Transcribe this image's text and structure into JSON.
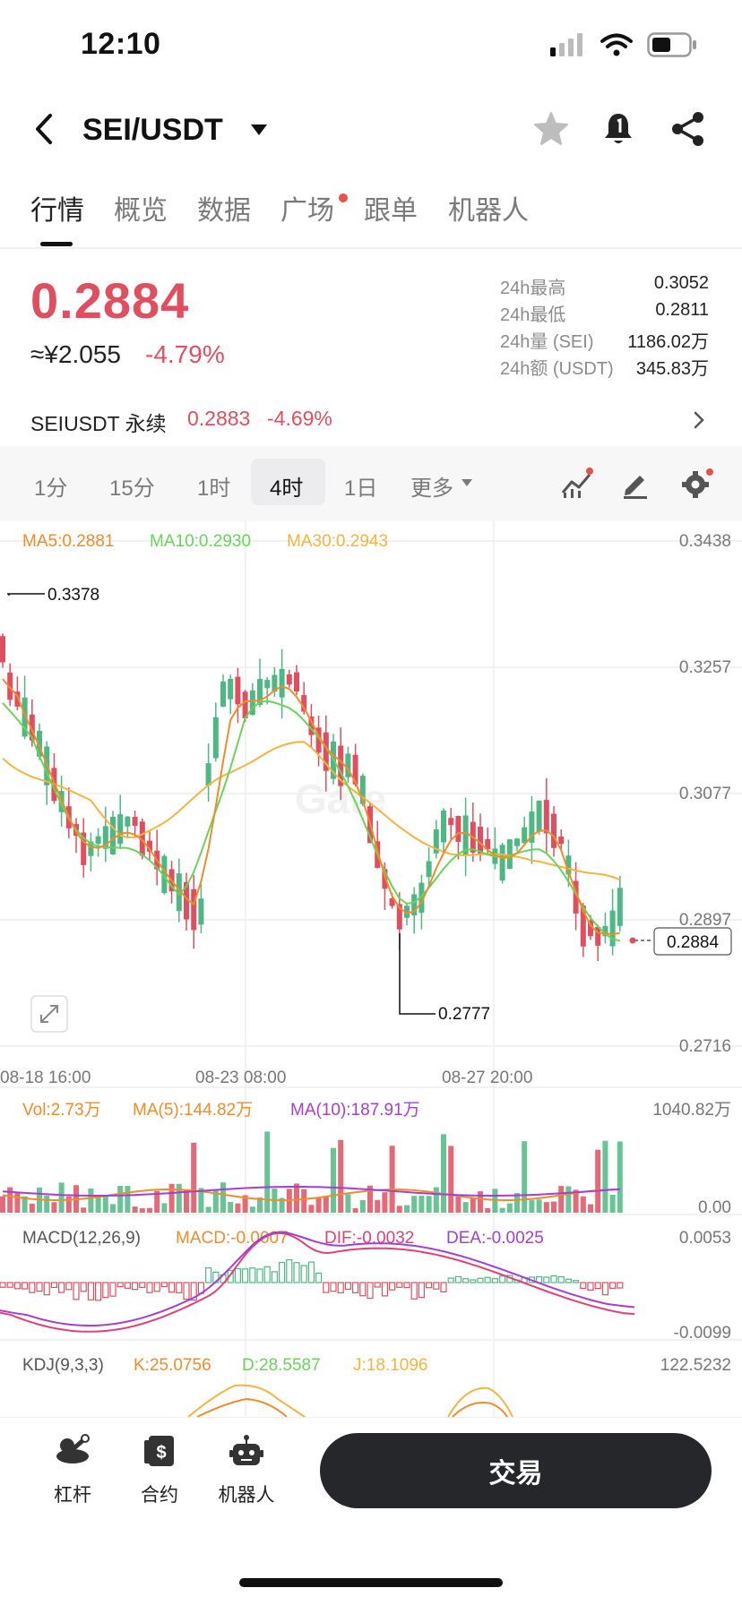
{
  "status_bar": {
    "time": "12:10"
  },
  "header": {
    "pair": "SEI/USDT"
  },
  "tabs": [
    {
      "label": "行情",
      "active": true
    },
    {
      "label": "概览"
    },
    {
      "label": "数据"
    },
    {
      "label": "广场",
      "has_dot": true
    },
    {
      "label": "跟单"
    },
    {
      "label": "机器人"
    }
  ],
  "ticker": {
    "last_price": "0.2884",
    "cny_value": "≈¥2.055",
    "change_pct": "-4.79%",
    "stats": [
      {
        "label": "24h最高",
        "value": "0.3052"
      },
      {
        "label": "24h最低",
        "value": "0.2811"
      },
      {
        "label": "24h量 (SEI)",
        "value": "1186.02万"
      },
      {
        "label": "24h额 (USDT)",
        "value": "345.83万"
      }
    ]
  },
  "perpetual": {
    "label": "SEIUSDT 永续",
    "price": "0.2883",
    "change_pct": "-4.69%"
  },
  "intervals": {
    "items": [
      "1分",
      "15分",
      "1时",
      "4时",
      "1日",
      "更多"
    ],
    "selected": "4时"
  },
  "colors": {
    "up": "#4db883",
    "down": "#e04f5f",
    "ma5": "#ef8c2b",
    "ma10": "#69d35a",
    "ma30": "#f3b53f",
    "macd_dif": "#e0407a",
    "macd_dea": "#a43fd1"
  },
  "chart": {
    "ma_legend": {
      "ma5": "MA5:0.2881",
      "ma10": "MA10:0.2930",
      "ma30": "MA30:0.2943"
    },
    "y_ticks": [
      "0.3438",
      "0.3257",
      "0.3077",
      "0.2897",
      "0.2716"
    ],
    "x_ticks": [
      "08-18 16:00",
      "08-23 08:00",
      "08-27 20:00"
    ],
    "high_marker": "0.3378",
    "low_marker": "0.2777",
    "current_price_tag": "0.2884",
    "watermark": "Gate"
  },
  "volume": {
    "vol": "Vol:2.73万",
    "ma5": "MA(5):144.82万",
    "ma10": "MA(10):187.91万",
    "max": "1040.82万",
    "min": "0.00"
  },
  "macd": {
    "label": "MACD(12,26,9)",
    "macd": "MACD:-0.0007",
    "dif": "DIF:-0.0032",
    "dea": "DEA:-0.0025",
    "max": "0.0053",
    "min": "-0.0099"
  },
  "kdj": {
    "label": "KDJ(9,3,3)",
    "k": "K:25.0756",
    "d": "D:28.5587",
    "j": "J:18.1096",
    "max": "122.5232"
  },
  "bottom_nav": [
    {
      "label": "杠杆",
      "icon": "leverage-icon"
    },
    {
      "label": "合约",
      "icon": "contract-icon"
    },
    {
      "label": "机器人",
      "icon": "robot-icon"
    }
  ],
  "trade_button": "交易"
}
